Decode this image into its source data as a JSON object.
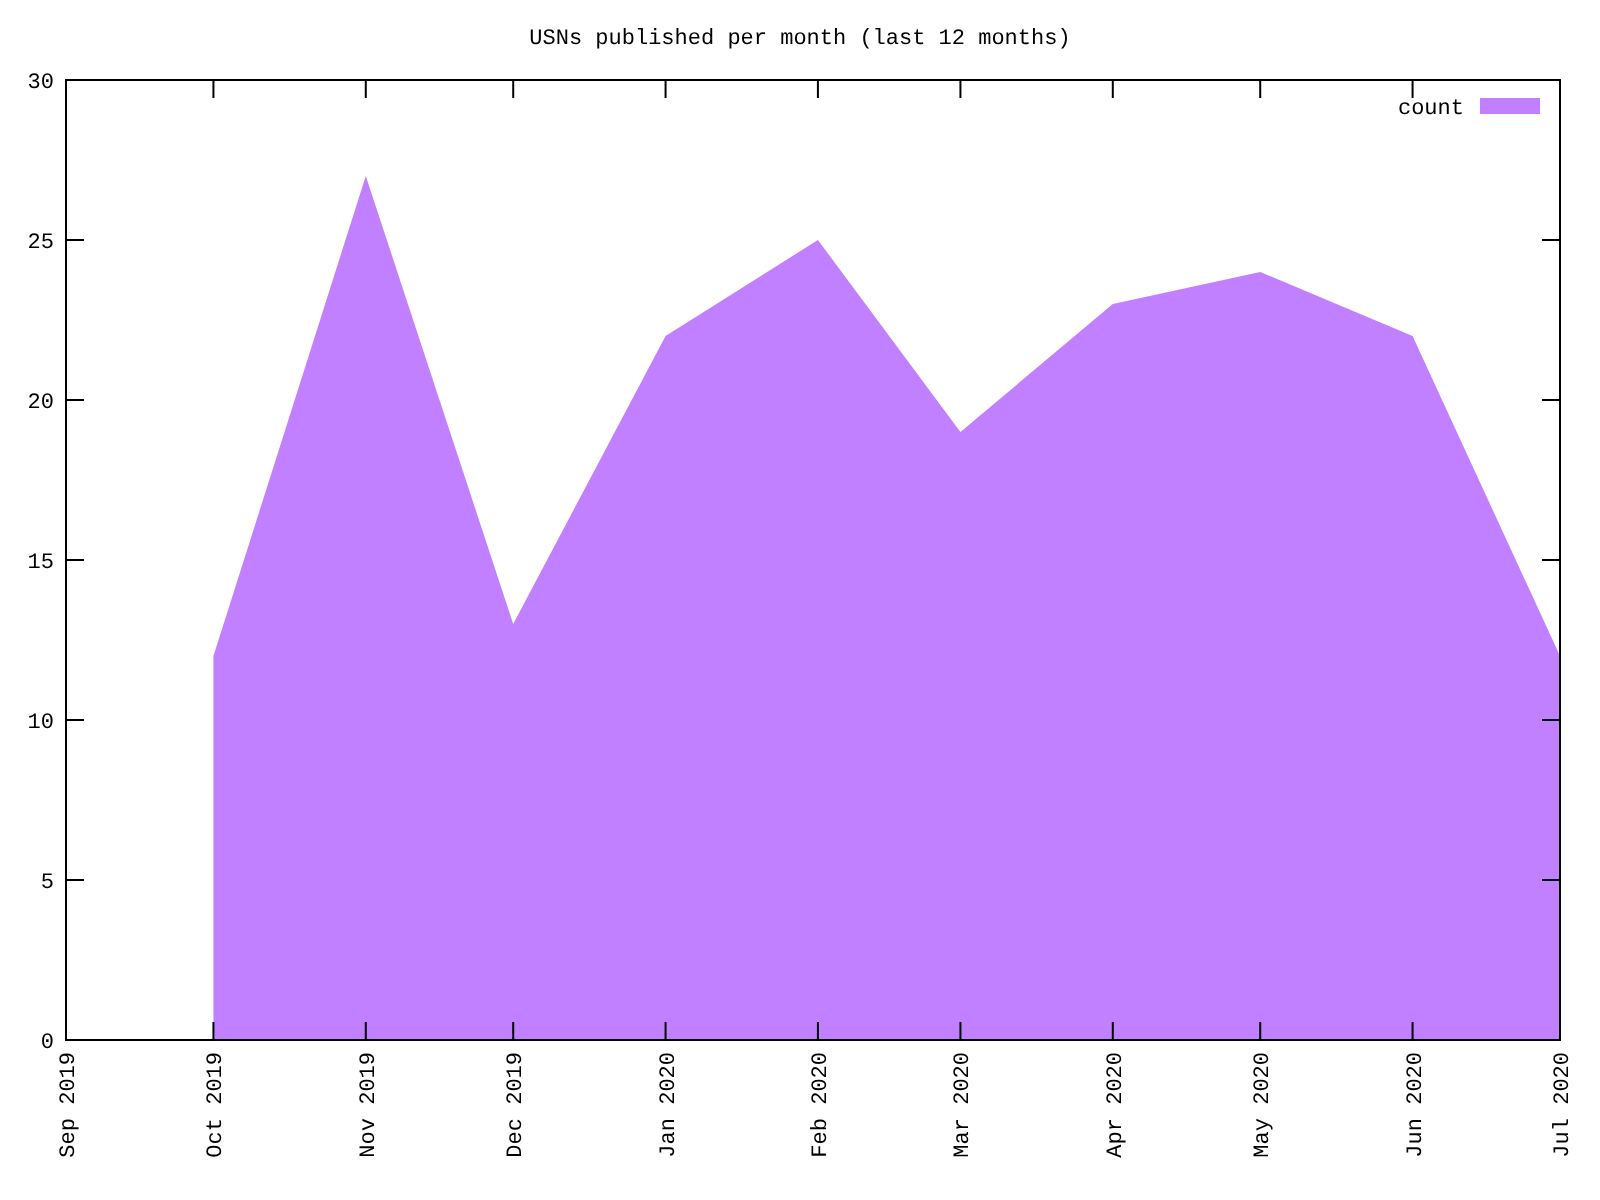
{
  "chart_data": {
    "type": "area",
    "title": "USNs published per month (last 12 months)",
    "x": [
      "2019-10",
      "2019-11",
      "2019-12",
      "2020-01",
      "2020-02",
      "2020-03",
      "2020-04",
      "2020-05",
      "2020-06",
      "2020-07"
    ],
    "series": [
      {
        "name": "count",
        "color": "#c080ff",
        "values": [
          12,
          27,
          13,
          22,
          25,
          19,
          23,
          24,
          22,
          12
        ]
      }
    ],
    "xlim": [
      "2019-09",
      "2020-07"
    ],
    "xticks": [
      {
        "value": "2019-09",
        "label": "Sep 2019"
      },
      {
        "value": "2019-10",
        "label": "Oct 2019"
      },
      {
        "value": "2019-11",
        "label": "Nov 2019"
      },
      {
        "value": "2019-12",
        "label": "Dec 2019"
      },
      {
        "value": "2020-01",
        "label": "Jan 2020"
      },
      {
        "value": "2020-02",
        "label": "Feb 2020"
      },
      {
        "value": "2020-03",
        "label": "Mar 2020"
      },
      {
        "value": "2020-04",
        "label": "Apr 2020"
      },
      {
        "value": "2020-05",
        "label": "May 2020"
      },
      {
        "value": "2020-06",
        "label": "Jun 2020"
      },
      {
        "value": "2020-07",
        "label": "Jul 2020"
      }
    ],
    "ylim": [
      0,
      30
    ],
    "yticks": [
      0,
      5,
      10,
      15,
      20,
      25,
      30
    ],
    "legend": "top right",
    "grid": false
  }
}
